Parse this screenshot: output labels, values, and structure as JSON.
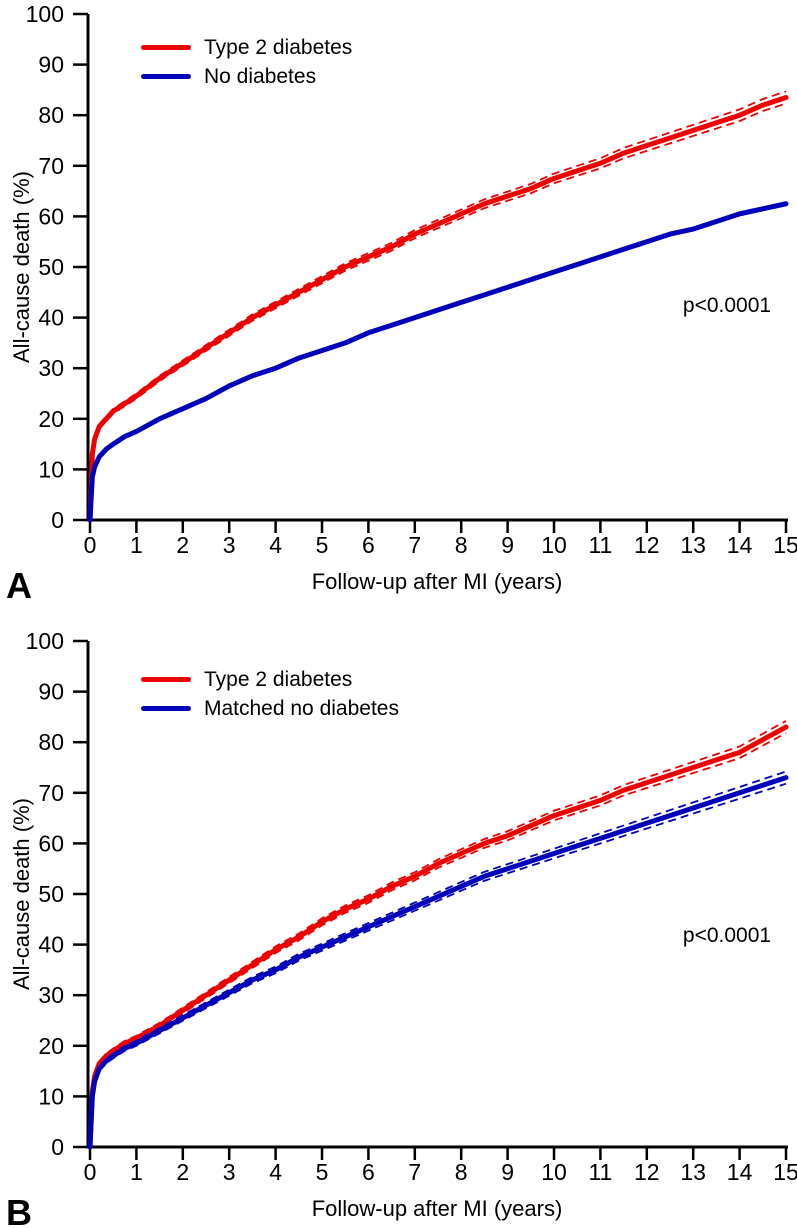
{
  "figure": {
    "background": "#ffffff",
    "colors": {
      "red": "#ee0000",
      "blue": "#0000bb",
      "axis": "#000000"
    }
  },
  "chart_data": [
    {
      "panel_label": "A",
      "type": "line",
      "xlabel": "Follow-up after MI (years)",
      "ylabel": "All-cause death (%)",
      "annotation": "p<0.0001",
      "xlim": [
        0,
        15
      ],
      "ylim": [
        0,
        100
      ],
      "xticks": [
        0,
        1,
        2,
        3,
        4,
        5,
        6,
        7,
        8,
        9,
        10,
        11,
        12,
        13,
        14,
        15
      ],
      "yticks": [
        0,
        10,
        20,
        30,
        40,
        50,
        60,
        70,
        80,
        90,
        100
      ],
      "grid": false,
      "legend_position": "top-left",
      "series": [
        {
          "name": "Type 2 diabetes",
          "color": "#ee0000",
          "ci_dashed": true,
          "x": [
            0,
            0.05,
            0.1,
            0.2,
            0.35,
            0.5,
            0.75,
            1,
            1.5,
            2,
            2.5,
            3,
            3.5,
            4,
            4.5,
            5,
            5.5,
            6,
            6.5,
            7,
            7.5,
            8,
            8.5,
            9,
            9.5,
            10,
            10.5,
            11,
            11.5,
            12,
            12.5,
            13,
            13.5,
            14,
            14.5,
            15
          ],
          "y": [
            0,
            13,
            16,
            18.5,
            20,
            21.5,
            23,
            24.5,
            28,
            31,
            34,
            37,
            40,
            42.5,
            45,
            47.5,
            50,
            52,
            54,
            56.5,
            58.5,
            60.5,
            62.5,
            64,
            65.5,
            67.5,
            69,
            70.5,
            72.5,
            74,
            75.5,
            77,
            78.5,
            80,
            82,
            83.5
          ]
        },
        {
          "name": "No diabetes",
          "color": "#0000bb",
          "ci_dashed": false,
          "x": [
            0,
            0.05,
            0.1,
            0.2,
            0.35,
            0.5,
            0.75,
            1,
            1.5,
            2,
            2.5,
            3,
            3.5,
            4,
            4.5,
            5,
            5.5,
            6,
            6.5,
            7,
            7.5,
            8,
            8.5,
            9,
            9.5,
            10,
            10.5,
            11,
            11.5,
            12,
            12.5,
            13,
            13.5,
            14,
            14.5,
            15
          ],
          "y": [
            0,
            8.5,
            10.5,
            12.5,
            14,
            15,
            16.5,
            17.5,
            20,
            22,
            24,
            26.5,
            28.5,
            30,
            32,
            33.5,
            35,
            37,
            38.5,
            40,
            41.5,
            43,
            44.5,
            46,
            47.5,
            49,
            50.5,
            52,
            53.5,
            55,
            56.5,
            57.5,
            59,
            60.5,
            61.5,
            62.5
          ]
        }
      ]
    },
    {
      "panel_label": "B",
      "type": "line",
      "xlabel": "Follow-up after MI (years)",
      "ylabel": "All-cause death (%)",
      "annotation": "p<0.0001",
      "xlim": [
        0,
        15
      ],
      "ylim": [
        0,
        100
      ],
      "xticks": [
        0,
        1,
        2,
        3,
        4,
        5,
        6,
        7,
        8,
        9,
        10,
        11,
        12,
        13,
        14,
        15
      ],
      "yticks": [
        0,
        10,
        20,
        30,
        40,
        50,
        60,
        70,
        80,
        90,
        100
      ],
      "grid": false,
      "legend_position": "top-left",
      "series": [
        {
          "name": "Type 2 diabetes",
          "color": "#ee0000",
          "ci_dashed": true,
          "x": [
            0,
            0.05,
            0.1,
            0.2,
            0.35,
            0.5,
            0.75,
            1,
            1.5,
            2,
            2.5,
            3,
            3.5,
            4,
            4.5,
            5,
            5.5,
            6,
            6.5,
            7,
            7.5,
            8,
            8.5,
            9,
            9.5,
            10,
            10.5,
            11,
            11.5,
            12,
            12.5,
            13,
            13.5,
            14,
            14.5,
            15
          ],
          "y": [
            0,
            11,
            14,
            16.5,
            18,
            19,
            20.5,
            21.5,
            24,
            27,
            30,
            33,
            36,
            39,
            41.5,
            44.5,
            47,
            49,
            51.5,
            53.5,
            56,
            58,
            60,
            61.5,
            63.5,
            65.5,
            67,
            68.5,
            70.5,
            72,
            73.5,
            75,
            76.5,
            78,
            80.5,
            83
          ]
        },
        {
          "name": "Matched no diabetes",
          "color": "#0000bb",
          "ci_dashed": true,
          "x": [
            0,
            0.05,
            0.1,
            0.2,
            0.35,
            0.5,
            0.75,
            1,
            1.5,
            2,
            2.5,
            3,
            3.5,
            4,
            4.5,
            5,
            5.5,
            6,
            6.5,
            7,
            7.5,
            8,
            8.5,
            9,
            9.5,
            10,
            10.5,
            11,
            11.5,
            12,
            12.5,
            13,
            13.5,
            14,
            14.5,
            15
          ],
          "y": [
            0,
            10,
            13,
            15.5,
            17,
            18,
            19.5,
            20.5,
            23,
            25.5,
            28,
            30.5,
            33,
            35,
            37.5,
            39.5,
            41.5,
            43.5,
            45.5,
            47.5,
            49.5,
            51.5,
            53.5,
            55,
            56.5,
            58,
            59.5,
            61,
            62.5,
            64,
            65.5,
            67,
            68.5,
            70,
            71.5,
            73
          ]
        }
      ]
    }
  ]
}
